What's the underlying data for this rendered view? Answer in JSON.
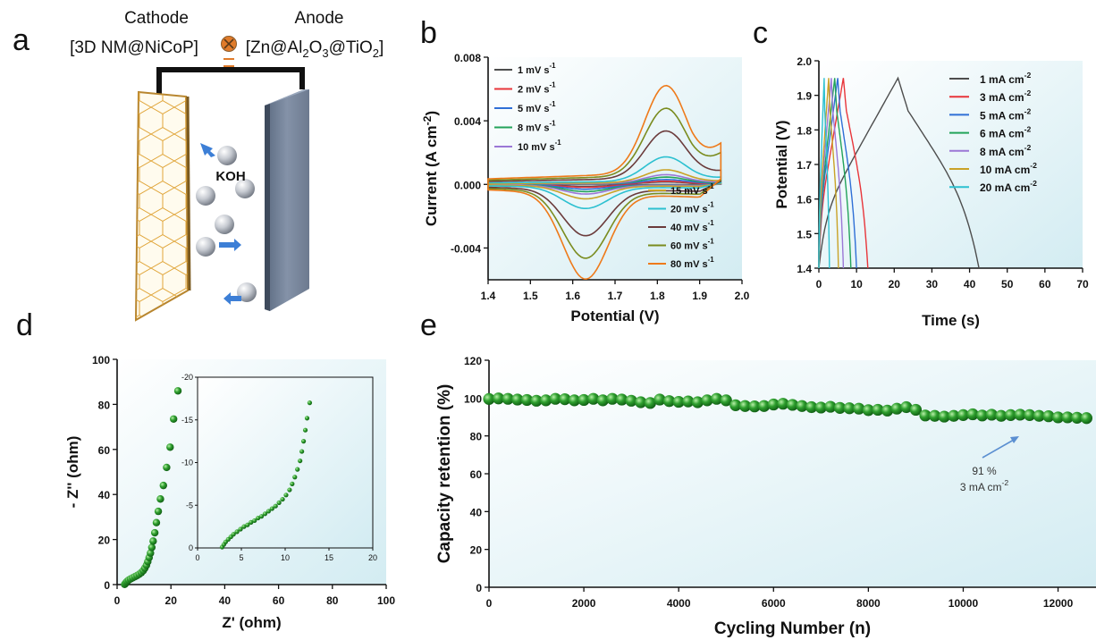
{
  "panels": {
    "a": "a",
    "b": "b",
    "c": "c",
    "d": "d",
    "e": "e"
  },
  "schematic": {
    "cathode_title": "Cathode",
    "cathode_material": "[3D NM@NiCoP]",
    "anode_title": "Anode",
    "anode_material": "[Zn@Al2O3@TiO2]",
    "electrolyte": "KOH",
    "colors": {
      "cathode_frame": "#b8862f",
      "anode": "#6f7f97",
      "ion": "#b9bec7",
      "arrow": "#3d7fd6",
      "symbol": "#e07b2a"
    }
  },
  "chart_data": [
    {
      "id": "b",
      "type": "line",
      "xlabel": "Potential (V)",
      "ylabel": "Current (A cm-2)",
      "xlim": [
        1.4,
        2.0
      ],
      "ylim": [
        -0.006,
        0.008
      ],
      "xticks": [
        "1.4",
        "1.5",
        "1.6",
        "1.7",
        "1.8",
        "1.9",
        "2.0"
      ],
      "yticks": [
        "-0.004",
        "0.000",
        "0.004",
        "0.008"
      ],
      "legend_top": [
        "1 mV s-1",
        "2 mV s-1",
        "5 mV s-1",
        "8 mV s-1",
        "10 mV s-1"
      ],
      "legend_bottom": [
        "15 mV s-1",
        "20 mV s-1",
        "40 mV s-1",
        "60 mV s-1",
        "80 mV s-1"
      ],
      "series": [
        {
          "name": "1 mV s-1",
          "color": "#4d4d4d",
          "ox_peak": 0.00015,
          "red_peak": -0.00012
        },
        {
          "name": "2 mV s-1",
          "color": "#e8353a",
          "ox_peak": 0.0002,
          "red_peak": -0.00018
        },
        {
          "name": "5 mV s-1",
          "color": "#2f6fd6",
          "ox_peak": 0.0003,
          "red_peak": -0.0003
        },
        {
          "name": "8 mV s-1",
          "color": "#23a35a",
          "ox_peak": 0.00045,
          "red_peak": -0.00045
        },
        {
          "name": "10 mV s-1",
          "color": "#9b77d6",
          "ox_peak": 0.0006,
          "red_peak": -0.0006
        },
        {
          "name": "15 mV s-1",
          "color": "#c9a227",
          "ox_peak": 0.0009,
          "red_peak": -0.0009
        },
        {
          "name": "20 mV s-1",
          "color": "#2cc0d0",
          "ox_peak": 0.0017,
          "red_peak": -0.0015
        },
        {
          "name": "40 mV s-1",
          "color": "#6b3b3b",
          "ox_peak": 0.0033,
          "red_peak": -0.0032
        },
        {
          "name": "60 mV s-1",
          "color": "#7a8c1f",
          "ox_peak": 0.0047,
          "red_peak": -0.0046
        },
        {
          "name": "80 mV s-1",
          "color": "#ee7a1a",
          "ox_peak": 0.0061,
          "red_peak": -0.0059
        }
      ],
      "ox_peak_potential": 1.82,
      "red_peak_potential": 1.63
    },
    {
      "id": "c",
      "type": "line",
      "xlabel": "Time (s)",
      "ylabel": "Potential (V)",
      "xlim": [
        0,
        70
      ],
      "ylim": [
        1.4,
        2.0
      ],
      "xticks": [
        "0",
        "10",
        "20",
        "30",
        "40",
        "50",
        "60",
        "70"
      ],
      "yticks": [
        "1.4",
        "1.5",
        "1.6",
        "1.7",
        "1.8",
        "1.9",
        "2.0"
      ],
      "series": [
        {
          "name": "1 mA cm-2",
          "color": "#4d4d4d",
          "t_charge": 21,
          "t_end": 42.5
        },
        {
          "name": "3 mA cm-2",
          "color": "#e8353a",
          "t_charge": 6.5,
          "t_end": 13
        },
        {
          "name": "5 mA cm-2",
          "color": "#2f6fd6",
          "t_charge": 5,
          "t_end": 10
        },
        {
          "name": "6 mA cm-2",
          "color": "#23a35a",
          "t_charge": 4.2,
          "t_end": 8.5
        },
        {
          "name": "8 mA cm-2",
          "color": "#9b77d6",
          "t_charge": 3.3,
          "t_end": 6.5
        },
        {
          "name": "10 mA cm-2",
          "color": "#c9a227",
          "t_charge": 2.6,
          "t_end": 5.2
        },
        {
          "name": "20 mA cm-2",
          "color": "#2cc0d0",
          "t_charge": 1.4,
          "t_end": 2.8
        }
      ],
      "v_min": 1.4,
      "v_max": 1.95
    },
    {
      "id": "d",
      "type": "scatter",
      "xlabel": "Z' (ohm)",
      "ylabel": "- Z'' (ohm)",
      "xlim": [
        0,
        100
      ],
      "ylim": [
        0,
        100
      ],
      "xticks": [
        "0",
        "20",
        "40",
        "60",
        "80",
        "100"
      ],
      "yticks": [
        "0",
        "20",
        "40",
        "60",
        "80",
        "100"
      ],
      "points": [
        [
          2.8,
          0.1
        ],
        [
          3.1,
          0.5
        ],
        [
          3.4,
          1.0
        ],
        [
          3.8,
          1.5
        ],
        [
          4.3,
          2.0
        ],
        [
          5.0,
          2.5
        ],
        [
          5.8,
          3.0
        ],
        [
          6.6,
          3.5
        ],
        [
          7.4,
          4.0
        ],
        [
          8.2,
          4.6
        ],
        [
          9.0,
          5.3
        ],
        [
          9.7,
          6.2
        ],
        [
          10.3,
          7.3
        ],
        [
          10.9,
          8.6
        ],
        [
          11.4,
          10.2
        ],
        [
          11.9,
          12.0
        ],
        [
          12.4,
          14.0
        ],
        [
          12.9,
          16.5
        ],
        [
          13.4,
          19.3
        ],
        [
          14.0,
          23.0
        ],
        [
          14.6,
          27.5
        ],
        [
          15.3,
          32.5
        ],
        [
          16.1,
          38.0
        ],
        [
          17.2,
          44.0
        ],
        [
          18.4,
          52.0
        ],
        [
          19.7,
          61.0
        ],
        [
          21.0,
          73.5
        ],
        [
          22.6,
          86.0
        ]
      ],
      "inset": {
        "xlim": [
          0,
          20
        ],
        "ylim": [
          0,
          -20
        ],
        "xticks": [
          "0",
          "5",
          "10",
          "15",
          "20"
        ],
        "yticks": [
          "0",
          "-5",
          "-10",
          "-15",
          "-20"
        ],
        "points": [
          [
            2.8,
            -0.1
          ],
          [
            3.0,
            -0.4
          ],
          [
            3.2,
            -0.7
          ],
          [
            3.5,
            -1.0
          ],
          [
            3.8,
            -1.3
          ],
          [
            4.1,
            -1.6
          ],
          [
            4.5,
            -1.9
          ],
          [
            4.9,
            -2.2
          ],
          [
            5.3,
            -2.5
          ],
          [
            5.7,
            -2.7
          ],
          [
            6.1,
            -3.0
          ],
          [
            6.5,
            -3.2
          ],
          [
            6.9,
            -3.5
          ],
          [
            7.3,
            -3.7
          ],
          [
            7.7,
            -4.0
          ],
          [
            8.1,
            -4.3
          ],
          [
            8.5,
            -4.6
          ],
          [
            8.9,
            -4.9
          ],
          [
            9.3,
            -5.3
          ],
          [
            9.7,
            -5.7
          ],
          [
            10.1,
            -6.2
          ],
          [
            10.5,
            -6.8
          ],
          [
            10.8,
            -7.5
          ],
          [
            11.1,
            -8.3
          ],
          [
            11.4,
            -9.2
          ],
          [
            11.7,
            -10.2
          ],
          [
            11.9,
            -11.3
          ],
          [
            12.1,
            -12.5
          ],
          [
            12.3,
            -13.8
          ],
          [
            12.5,
            -15.2
          ],
          [
            12.8,
            -17.0
          ]
        ]
      }
    },
    {
      "id": "e",
      "type": "scatter",
      "xlabel": "Cycling Number (n)",
      "ylabel": "Capacity retention (%)",
      "xlim": [
        0,
        12800
      ],
      "ylim": [
        0,
        120
      ],
      "xticks": [
        "0",
        "2000",
        "4000",
        "6000",
        "8000",
        "10000",
        "12000"
      ],
      "yticks": [
        "0",
        "20",
        "40",
        "60",
        "80",
        "100",
        "120"
      ],
      "annotation": {
        "line1": "91 %",
        "line2": "3 mA cm-2"
      },
      "points": [
        [
          0,
          99.5
        ],
        [
          200,
          99.8
        ],
        [
          400,
          99.6
        ],
        [
          600,
          99.2
        ],
        [
          800,
          99.0
        ],
        [
          1000,
          98.6
        ],
        [
          1200,
          98.8
        ],
        [
          1400,
          99.6
        ],
        [
          1600,
          99.4
        ],
        [
          1800,
          98.8
        ],
        [
          2000,
          99.0
        ],
        [
          2200,
          99.6
        ],
        [
          2400,
          98.8
        ],
        [
          2600,
          99.6
        ],
        [
          2800,
          99.2
        ],
        [
          3000,
          98.6
        ],
        [
          3200,
          97.8
        ],
        [
          3400,
          97.4
        ],
        [
          3600,
          99.2
        ],
        [
          3800,
          98.4
        ],
        [
          4000,
          98.0
        ],
        [
          4200,
          98.2
        ],
        [
          4400,
          97.8
        ],
        [
          4600,
          98.8
        ],
        [
          4800,
          99.6
        ],
        [
          5000,
          98.8
        ],
        [
          5200,
          96.2
        ],
        [
          5400,
          95.8
        ],
        [
          5600,
          95.6
        ],
        [
          5800,
          95.8
        ],
        [
          6000,
          96.6
        ],
        [
          6200,
          97.0
        ],
        [
          6400,
          96.4
        ],
        [
          6600,
          95.8
        ],
        [
          6800,
          95.2
        ],
        [
          7000,
          95.0
        ],
        [
          7200,
          95.4
        ],
        [
          7400,
          94.8
        ],
        [
          7600,
          94.6
        ],
        [
          7800,
          94.4
        ],
        [
          8000,
          93.6
        ],
        [
          8200,
          93.8
        ],
        [
          8400,
          93.4
        ],
        [
          8600,
          94.4
        ],
        [
          8800,
          95.2
        ],
        [
          9000,
          93.8
        ],
        [
          9200,
          90.8
        ],
        [
          9400,
          90.6
        ],
        [
          9600,
          90.2
        ],
        [
          9800,
          90.6
        ],
        [
          10000,
          91.0
        ],
        [
          10200,
          91.4
        ],
        [
          10400,
          90.8
        ],
        [
          10600,
          91.2
        ],
        [
          10800,
          90.6
        ],
        [
          11000,
          91.0
        ],
        [
          11200,
          91.2
        ],
        [
          11400,
          91.0
        ],
        [
          11600,
          90.6
        ],
        [
          11800,
          90.4
        ],
        [
          12000,
          89.8
        ],
        [
          12200,
          89.8
        ],
        [
          12400,
          89.6
        ],
        [
          12600,
          89.4
        ]
      ]
    }
  ]
}
